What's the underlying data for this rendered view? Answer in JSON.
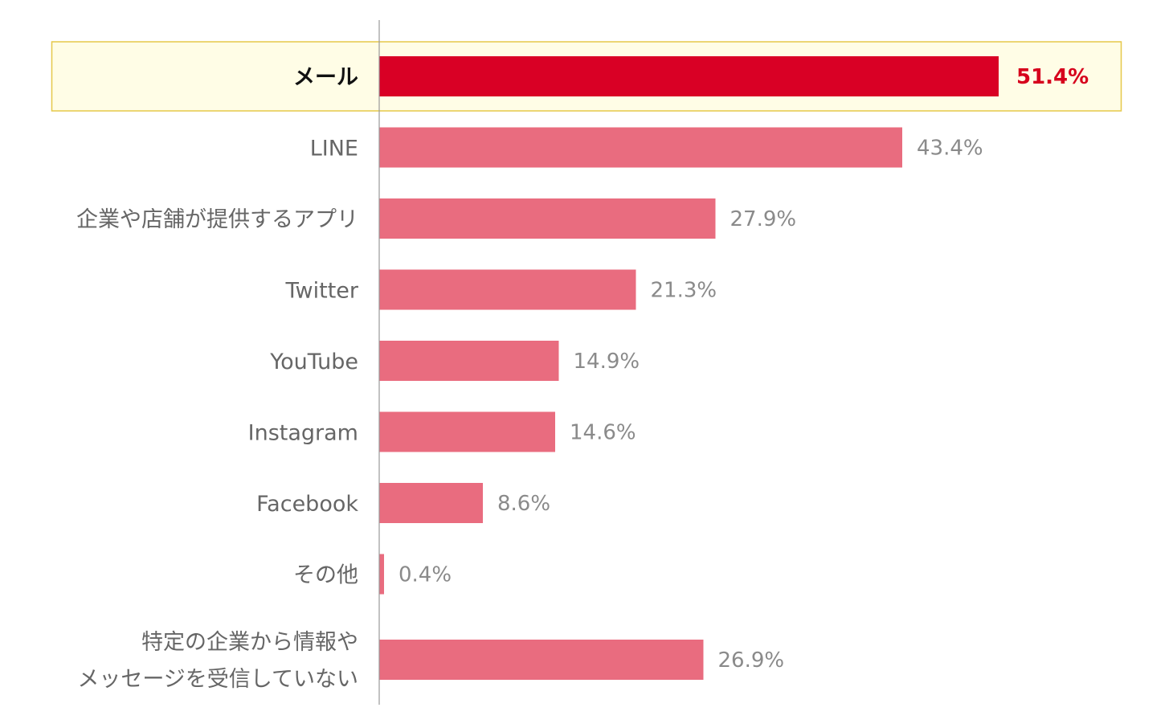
{
  "chart_data": {
    "type": "bar",
    "orientation": "horizontal",
    "categories": [
      [
        "メール"
      ],
      [
        "LINE"
      ],
      [
        "企業や店舗が提供するアプリ"
      ],
      [
        "Twitter"
      ],
      [
        "YouTube"
      ],
      [
        "Instagram"
      ],
      [
        "Facebook"
      ],
      [
        "その他"
      ],
      [
        "特定の企業から情報や",
        "メッセージを受信していない"
      ]
    ],
    "values": [
      51.4,
      43.4,
      27.9,
      21.3,
      14.9,
      14.6,
      8.6,
      0.4,
      26.9
    ],
    "value_labels": [
      "51.4%",
      "43.4%",
      "27.9%",
      "21.3%",
      "14.9%",
      "14.6%",
      "8.6%",
      "0.4%",
      "26.9%"
    ],
    "highlighted_index": 0,
    "xlim": [
      0,
      60
    ],
    "grid": false,
    "colors": {
      "bar": "#e96c7f",
      "bar_highlight": "#d90025",
      "highlight_band_fill": "#fffde6",
      "highlight_band_stroke": "#e6c84a",
      "axis": "#999999",
      "label": "#666666",
      "label_highlight": "#111111",
      "value_label": "#8a8a8a",
      "value_label_highlight": "#d6001c"
    }
  }
}
